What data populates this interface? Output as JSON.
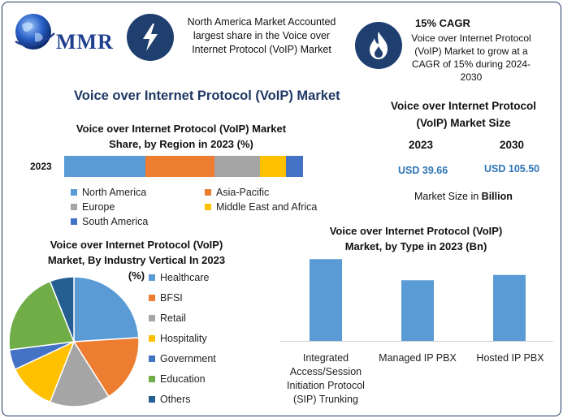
{
  "brand": {
    "logo_text": "MMR"
  },
  "header": {
    "north_america_note": [
      "North America Market Accounted",
      "largest share in the Voice over",
      "Internet Protocol (VoIP) Market"
    ],
    "cagr_title": "15% CAGR",
    "cagr_body": [
      "Voice over Internet Protocol",
      "(VoIP) Market to grow at a",
      "CAGR of 15% during 2024-",
      "2030"
    ],
    "bolt_icon": "lightning-bolt-icon",
    "flame_icon": "flame-icon"
  },
  "main_title": "Voice over Internet Protocol (VoIP) Market",
  "market_size": {
    "title": [
      "Voice over Internet Protocol",
      "(VoIP) Market Size"
    ],
    "year_1": "2023",
    "year_2": "2030",
    "value_1": "USD 39.66",
    "value_2": "USD 105.50",
    "unit_prefix": "Market Size in ",
    "unit_bold": "Billion"
  },
  "colors": {
    "north_america": "#5b9bd5",
    "asia_pacific": "#ed7d31",
    "europe": "#a5a5a5",
    "mea": "#ffc000",
    "south_america": "#4472c4",
    "healthcare": "#5b9bd5",
    "bfsi": "#ed7d31",
    "retail": "#a5a5a5",
    "hospitality": "#ffc000",
    "government": "#4472c4",
    "education": "#70ad47",
    "others": "#255e91",
    "bar": "#5b9bd5"
  },
  "chart_data": [
    {
      "type": "bar",
      "orientation": "horizontal-stacked",
      "title": [
        "Voice over Internet Protocol (VoIP) Market",
        "Share, by Region in 2023 (%)"
      ],
      "categories": [
        "2023"
      ],
      "series": [
        {
          "name": "North America",
          "values": [
            34
          ]
        },
        {
          "name": "Asia-Pacific",
          "values": [
            29
          ]
        },
        {
          "name": "Europe",
          "values": [
            19
          ]
        },
        {
          "name": "Middle East and Africa",
          "values": [
            11
          ]
        },
        {
          "name": "South America",
          "values": [
            7
          ]
        }
      ],
      "legend": "bottom"
    },
    {
      "type": "pie",
      "title": [
        "Voice over Internet Protocol (VoIP)",
        "Market, By Industry Vertical In 2023",
        "(%)"
      ],
      "labels": [
        "Healthcare",
        "BFSI",
        "Retail",
        "Hospitality",
        "Government",
        "Education",
        "Others"
      ],
      "values": [
        24,
        17,
        15,
        12,
        5,
        21,
        6
      ],
      "legend": "right"
    },
    {
      "type": "bar",
      "title": [
        "Voice over Internet Protocol (VoIP)",
        "Market, by Type in 2023 (Bn)"
      ],
      "categories": [
        [
          "Integrated",
          "Access/Session",
          "Initiation Protocol",
          "(SIP) Trunking"
        ],
        [
          "Managed IP PBX"
        ],
        [
          "Hosted IP PBX"
        ]
      ],
      "values": [
        15.5,
        11.5,
        12.5
      ],
      "ylim": [
        0,
        16
      ],
      "grid": false
    }
  ]
}
